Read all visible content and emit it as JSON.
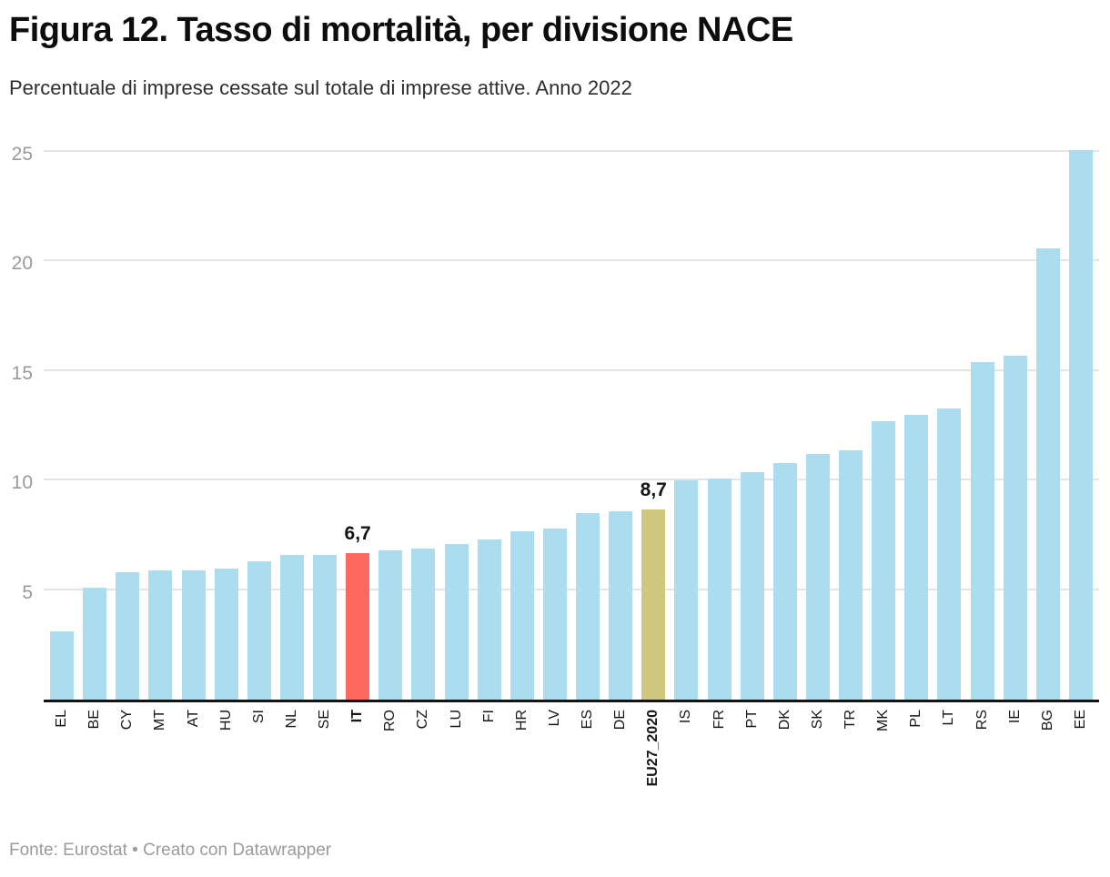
{
  "header": {
    "title": "Figura 12. Tasso di mortalità, per divisione NACE",
    "subtitle": "Percentuale di imprese cessate sul totale di imprese attive. Anno 2022"
  },
  "footer": {
    "text": "Fonte: Eurostat • Creato con Datawrapper"
  },
  "colors": {
    "bar_default": "#ABDDEE",
    "bar_highlight_it": "#FD695E",
    "bar_highlight_eu": "#CDC87E",
    "gridline": "#e4e4e4",
    "axis_line": "#141414",
    "y_tick_text": "#9a9a9a",
    "x_tick_text": "#161616"
  },
  "chart_data": {
    "type": "bar",
    "title": "Figura 12. Tasso di mortalità, per divisione NACE",
    "subtitle": "Percentuale di imprese cessate sul totale di imprese attive. Anno 2022",
    "xlabel": "",
    "ylabel": "",
    "categories": [
      "EL",
      "BE",
      "CY",
      "MT",
      "AT",
      "HU",
      "SI",
      "NL",
      "SE",
      "IT",
      "RO",
      "CZ",
      "LU",
      "FI",
      "HR",
      "LV",
      "ES",
      "DE",
      "EU27_2020",
      "IS",
      "FR",
      "PT",
      "DK",
      "SK",
      "TR",
      "MK",
      "PL",
      "LT",
      "RS",
      "IE",
      "BG",
      "EE"
    ],
    "values": [
      3.1,
      5.1,
      5.8,
      5.9,
      5.9,
      6.0,
      6.3,
      6.6,
      6.6,
      6.7,
      6.8,
      6.9,
      7.1,
      7.3,
      7.7,
      7.8,
      8.5,
      8.6,
      8.7,
      10.0,
      10.1,
      10.4,
      10.8,
      11.2,
      11.4,
      12.7,
      13.0,
      13.3,
      15.4,
      15.7,
      20.6,
      25.1
    ],
    "bar_color": "#ABDDEE",
    "bar_colors": {
      "IT": "#FD695E",
      "EU27_2020": "#CDC87E"
    },
    "data_labels": {
      "IT": "6,7",
      "EU27_2020": "8,7"
    },
    "bold_categories": [
      "IT",
      "EU27_2020"
    ],
    "y_ticks": [
      5,
      10,
      15,
      20,
      25
    ],
    "ylim": [
      0,
      25.4
    ],
    "grid": true,
    "legend": "none"
  }
}
